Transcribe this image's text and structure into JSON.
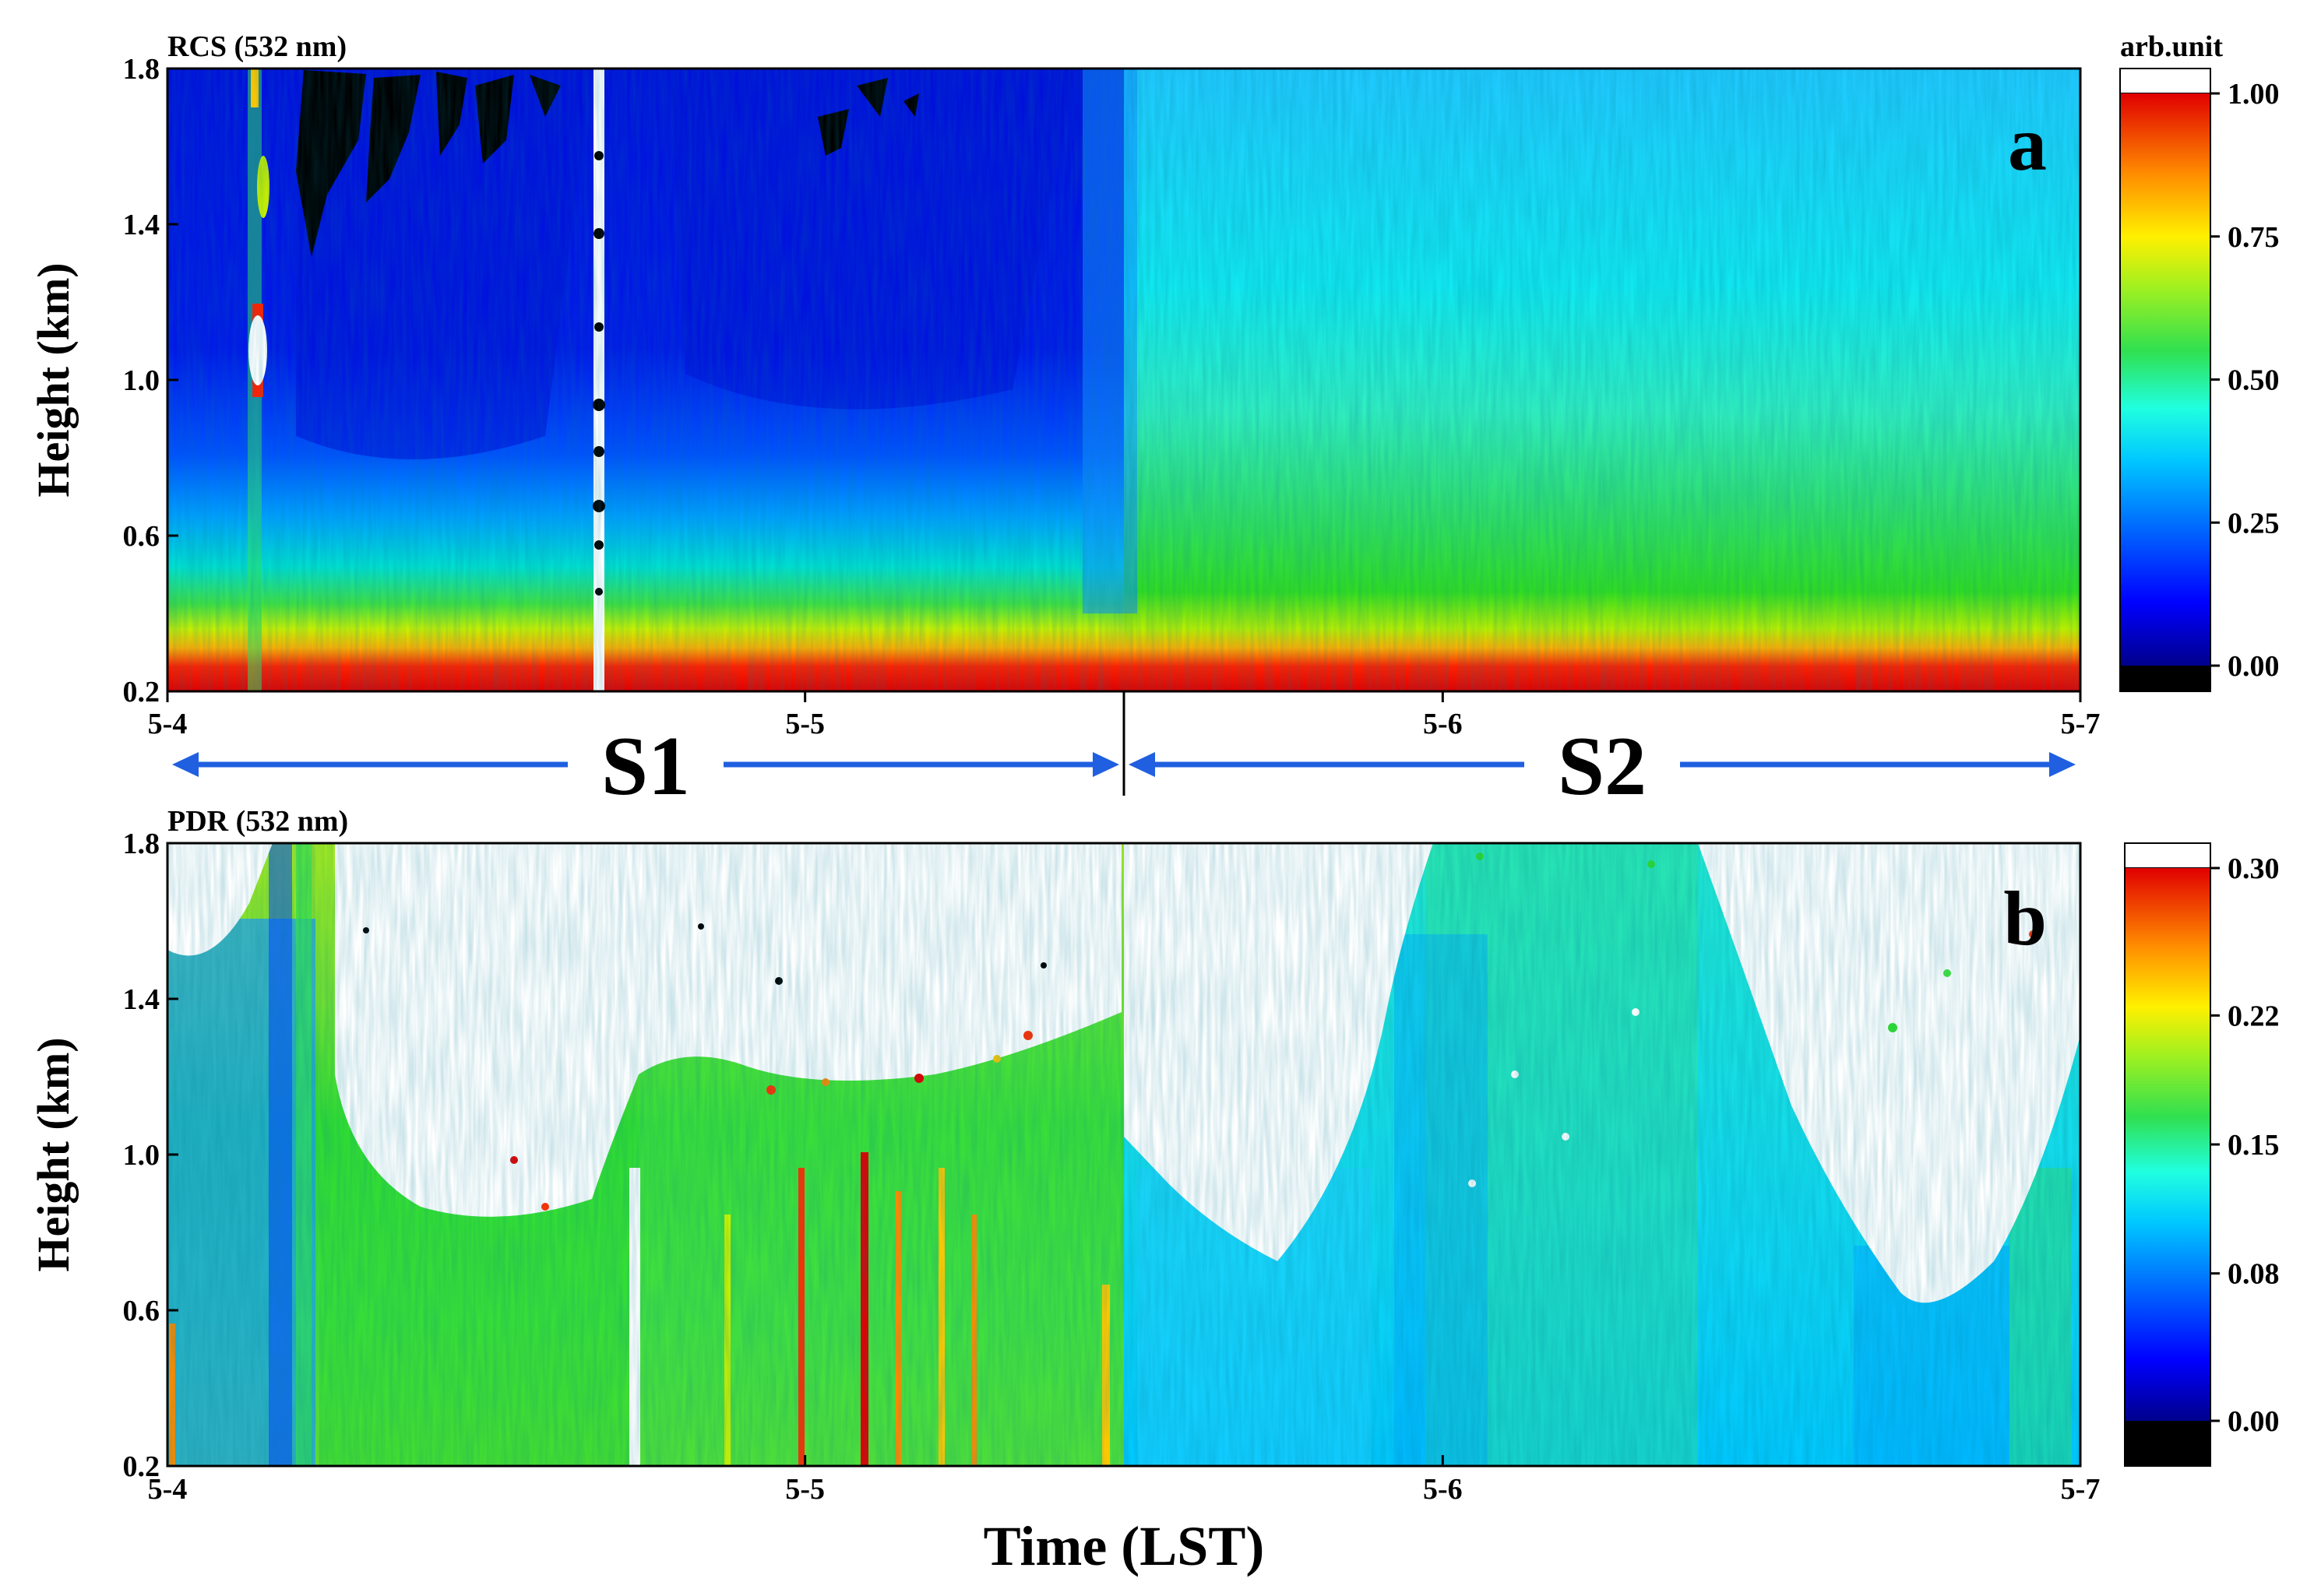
{
  "chart_data": [
    {
      "type": "heatmap",
      "panel_id": "a",
      "title": "RCS (532 nm)",
      "xlabel": "",
      "ylabel": "Height (km)",
      "xlim": [
        0,
        3
      ],
      "ylim": [
        0.2,
        1.8
      ],
      "x_ticks": [
        "5-4",
        "5-5",
        "5-6",
        "5-7"
      ],
      "y_ticks": [
        {
          "value": 0.2,
          "label": "0.2"
        },
        {
          "value": 0.6,
          "label": "0.6"
        },
        {
          "value": 1.0,
          "label": "1.0"
        },
        {
          "value": 1.4,
          "label": "1.4"
        },
        {
          "value": 1.8,
          "label": "1.8"
        }
      ],
      "colorbar": {
        "unit_label": "arb.unit",
        "range": [
          0.0,
          1.0
        ],
        "ticks": [
          {
            "value": 0.0,
            "label": "0.00"
          },
          {
            "value": 0.25,
            "label": "0.25"
          },
          {
            "value": 0.5,
            "label": "0.50"
          },
          {
            "value": 0.75,
            "label": "0.75"
          },
          {
            "value": 1.0,
            "label": "1.00"
          }
        ]
      },
      "annotation": "a"
    },
    {
      "type": "heatmap",
      "panel_id": "b",
      "title": "PDR (532 nm)",
      "xlabel": "Time (LST)",
      "ylabel": "Height (km)",
      "xlim": [
        0,
        3
      ],
      "ylim": [
        0.2,
        1.8
      ],
      "x_ticks": [
        "5-4",
        "5-5",
        "5-6",
        "5-7"
      ],
      "y_ticks": [
        {
          "value": 0.2,
          "label": "0.2"
        },
        {
          "value": 0.6,
          "label": "0.6"
        },
        {
          "value": 1.0,
          "label": "1.0"
        },
        {
          "value": 1.4,
          "label": "1.4"
        },
        {
          "value": 1.8,
          "label": "1.8"
        }
      ],
      "colorbar": {
        "unit_label": "",
        "range": [
          0.0,
          0.3
        ],
        "ticks": [
          {
            "value": 0.0,
            "label": "0.00"
          },
          {
            "value": 0.08,
            "label": "0.08"
          },
          {
            "value": 0.15,
            "label": "0.15"
          },
          {
            "value": 0.22,
            "label": "0.22"
          },
          {
            "value": 0.3,
            "label": "0.30"
          }
        ]
      },
      "annotation": "b"
    }
  ],
  "periods": {
    "axis_ticks": [
      "5-4",
      "5-5",
      "5-6",
      "5-7"
    ],
    "divider_day": 1.5,
    "arrow_color": "#1f5fe0",
    "items": [
      {
        "label": "S1",
        "start_day": 0.0,
        "end_day": 1.5
      },
      {
        "label": "S2",
        "start_day": 1.5,
        "end_day": 3.0
      }
    ]
  },
  "colors": {
    "jet": [
      "#00008c",
      "#0000d8",
      "#0038ff",
      "#0080ff",
      "#00c8ff",
      "#00f0ff",
      "#40ffc0",
      "#30ee70",
      "#30dd20",
      "#90e820",
      "#e8f000",
      "#ffc800",
      "#ff8c00",
      "#ff4000",
      "#e00000"
    ]
  }
}
